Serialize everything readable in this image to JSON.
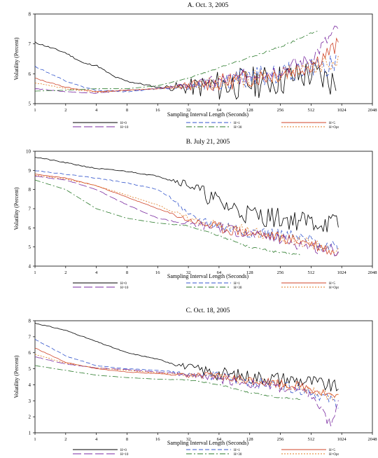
{
  "chart_data": [
    {
      "type": "line",
      "title": "A. Oct. 3, 2005",
      "xlabel": "Sampling Interval Length (Seconds)",
      "ylabel": "Volatility (Percent)",
      "x_scale": "log2",
      "xlim": [
        1,
        2048
      ],
      "ylim": [
        5,
        8
      ],
      "xticks": [
        1,
        2,
        4,
        8,
        16,
        32,
        64,
        128,
        256,
        512,
        1024,
        2048
      ],
      "yticks": [
        5,
        6,
        7,
        8
      ],
      "legend": [
        "H=0",
        "H=1",
        "H=5",
        "H=10",
        "H=30",
        "H=Opt"
      ],
      "series": [
        {
          "name": "H=0",
          "color": "#000000",
          "dash": "solid",
          "trend": [
            [
              1,
              7.05
            ],
            [
              2,
              6.7
            ],
            [
              3,
              6.35
            ],
            [
              4,
              6.28
            ],
            [
              6,
              5.9
            ],
            [
              8,
              5.75
            ],
            [
              16,
              5.55
            ],
            [
              32,
              5.55
            ],
            [
              64,
              5.6
            ],
            [
              128,
              5.7
            ],
            [
              256,
              5.8
            ],
            [
              512,
              6.0
            ],
            [
              900,
              5.7
            ]
          ],
          "noise": 0.55,
          "seed": 11
        },
        {
          "name": "H=1",
          "color": "#3355cc",
          "dash": "dashed",
          "trend": [
            [
              1,
              6.25
            ],
            [
              2,
              5.75
            ],
            [
              3,
              5.55
            ],
            [
              4,
              5.45
            ],
            [
              8,
              5.4
            ],
            [
              16,
              5.5
            ],
            [
              32,
              5.6
            ],
            [
              64,
              5.7
            ],
            [
              128,
              5.9
            ],
            [
              256,
              6.0
            ],
            [
              512,
              6.2
            ],
            [
              900,
              6.3
            ]
          ],
          "noise": 0.35,
          "seed": 12
        },
        {
          "name": "H=5",
          "color": "#d0452a",
          "dash": "solid",
          "trend": [
            [
              1,
              5.85
            ],
            [
              2,
              5.55
            ],
            [
              4,
              5.4
            ],
            [
              8,
              5.45
            ],
            [
              16,
              5.5
            ],
            [
              32,
              5.6
            ],
            [
              64,
              5.7
            ],
            [
              128,
              5.85
            ],
            [
              256,
              6.0
            ],
            [
              512,
              6.3
            ],
            [
              950,
              6.95
            ]
          ],
          "noise": 0.3,
          "seed": 13
        },
        {
          "name": "H=10",
          "color": "#7a2aa0",
          "dash": "longdash",
          "trend": [
            [
              1,
              5.5
            ],
            [
              2,
              5.4
            ],
            [
              4,
              5.35
            ],
            [
              8,
              5.45
            ],
            [
              16,
              5.5
            ],
            [
              32,
              5.6
            ],
            [
              64,
              5.75
            ],
            [
              128,
              5.95
            ],
            [
              256,
              6.15
            ],
            [
              512,
              6.5
            ],
            [
              950,
              7.55
            ]
          ],
          "noise": 0.25,
          "seed": 14
        },
        {
          "name": "H=30",
          "color": "#2a7a2a",
          "dash": "dashdot",
          "trend": [
            [
              1,
              5.42
            ],
            [
              2,
              5.45
            ],
            [
              4,
              5.5
            ],
            [
              8,
              5.5
            ],
            [
              16,
              5.6
            ],
            [
              32,
              5.85
            ],
            [
              64,
              6.2
            ],
            [
              128,
              6.55
            ],
            [
              256,
              6.9
            ],
            [
              512,
              7.35
            ],
            [
              620,
              7.45
            ]
          ],
          "noise": 0.03,
          "seed": 15
        },
        {
          "name": "H=Opt",
          "color": "#e07a20",
          "dash": "dotted",
          "trend": [
            [
              1,
              5.7
            ],
            [
              2,
              5.5
            ],
            [
              4,
              5.38
            ],
            [
              8,
              5.45
            ],
            [
              16,
              5.5
            ],
            [
              32,
              5.6
            ],
            [
              64,
              5.7
            ],
            [
              128,
              5.85
            ],
            [
              256,
              6.0
            ],
            [
              512,
              6.2
            ],
            [
              950,
              6.45
            ]
          ],
          "noise": 0.28,
          "seed": 16
        }
      ]
    },
    {
      "type": "line",
      "title": "B. July 21, 2005",
      "xlabel": "Sampling Interval Length (Seconds)",
      "ylabel": "Volatility (Percent)",
      "x_scale": "log2",
      "xlim": [
        1,
        2048
      ],
      "ylim": [
        4,
        10
      ],
      "xticks": [
        1,
        2,
        4,
        8,
        16,
        32,
        64,
        128,
        256,
        512,
        1024,
        2048
      ],
      "yticks": [
        4,
        5,
        6,
        7,
        8,
        9,
        10
      ],
      "legend": [
        "H=0",
        "H=1",
        "H=5",
        "H=10",
        "H=30",
        "H=Opt"
      ],
      "series": [
        {
          "name": "H=0",
          "color": "#000000",
          "dash": "solid",
          "trend": [
            [
              1,
              9.7
            ],
            [
              2,
              9.4
            ],
            [
              4,
              9.1
            ],
            [
              8,
              8.95
            ],
            [
              16,
              8.7
            ],
            [
              32,
              8.3
            ],
            [
              64,
              7.3
            ],
            [
              128,
              6.7
            ],
            [
              256,
              6.5
            ],
            [
              512,
              6.3
            ],
            [
              950,
              6.2
            ]
          ],
          "noise": 0.55,
          "seed": 21
        },
        {
          "name": "H=1",
          "color": "#3355cc",
          "dash": "dashed",
          "trend": [
            [
              1,
              9.0
            ],
            [
              2,
              8.8
            ],
            [
              4,
              8.6
            ],
            [
              8,
              8.35
            ],
            [
              16,
              8.0
            ],
            [
              24,
              7.4
            ],
            [
              32,
              6.6
            ],
            [
              64,
              6.1
            ],
            [
              128,
              5.8
            ],
            [
              256,
              5.6
            ],
            [
              512,
              5.3
            ],
            [
              950,
              5.0
            ]
          ],
          "noise": 0.35,
          "seed": 22
        },
        {
          "name": "H=5",
          "color": "#d0452a",
          "dash": "solid",
          "trend": [
            [
              1,
              8.8
            ],
            [
              2,
              8.6
            ],
            [
              4,
              8.2
            ],
            [
              8,
              7.6
            ],
            [
              16,
              7.0
            ],
            [
              32,
              6.4
            ],
            [
              64,
              6.0
            ],
            [
              128,
              5.7
            ],
            [
              256,
              5.5
            ],
            [
              512,
              5.2
            ],
            [
              950,
              4.6
            ]
          ],
          "noise": 0.3,
          "seed": 23
        },
        {
          "name": "H=10",
          "color": "#7a2aa0",
          "dash": "longdash",
          "trend": [
            [
              1,
              8.7
            ],
            [
              2,
              8.5
            ],
            [
              4,
              8.0
            ],
            [
              8,
              7.2
            ],
            [
              16,
              6.5
            ],
            [
              32,
              6.2
            ],
            [
              64,
              6.0
            ],
            [
              128,
              5.7
            ],
            [
              256,
              5.4
            ],
            [
              512,
              5.0
            ],
            [
              950,
              4.8
            ]
          ],
          "noise": 0.3,
          "seed": 24
        },
        {
          "name": "H=30",
          "color": "#2a7a2a",
          "dash": "dashdot",
          "trend": [
            [
              1,
              8.5
            ],
            [
              2,
              8.0
            ],
            [
              4,
              7.0
            ],
            [
              8,
              6.5
            ],
            [
              16,
              6.25
            ],
            [
              32,
              6.1
            ],
            [
              64,
              5.6
            ],
            [
              128,
              5.0
            ],
            [
              256,
              4.7
            ],
            [
              400,
              4.6
            ]
          ],
          "noise": 0.05,
          "seed": 25
        },
        {
          "name": "H=Opt",
          "color": "#e07a20",
          "dash": "dotted",
          "trend": [
            [
              1,
              8.75
            ],
            [
              2,
              8.55
            ],
            [
              4,
              8.2
            ],
            [
              8,
              7.7
            ],
            [
              16,
              7.2
            ],
            [
              32,
              6.5
            ],
            [
              64,
              6.1
            ],
            [
              128,
              5.8
            ],
            [
              256,
              5.5
            ],
            [
              512,
              5.2
            ],
            [
              950,
              4.7
            ]
          ],
          "noise": 0.3,
          "seed": 26
        }
      ]
    },
    {
      "type": "line",
      "title": "C. Oct. 18, 2005",
      "xlabel": "Sampling Interval Length (Seconds)",
      "ylabel": "Volatility (Percent)",
      "x_scale": "log2",
      "xlim": [
        1,
        2048
      ],
      "ylim": [
        1,
        8
      ],
      "xticks": [
        1,
        2,
        4,
        8,
        16,
        32,
        64,
        128,
        256,
        512,
        1024,
        2048
      ],
      "yticks": [
        1,
        2,
        3,
        4,
        5,
        6,
        7,
        8
      ],
      "legend": [
        "H=0",
        "H=1",
        "H=5",
        "H=10",
        "H=30",
        "H=Opt"
      ],
      "series": [
        {
          "name": "H=0",
          "color": "#000000",
          "dash": "solid",
          "trend": [
            [
              1,
              7.85
            ],
            [
              2,
              7.4
            ],
            [
              4,
              6.7
            ],
            [
              8,
              6.0
            ],
            [
              16,
              5.6
            ],
            [
              32,
              5.1
            ],
            [
              64,
              4.7
            ],
            [
              128,
              4.5
            ],
            [
              256,
              4.4
            ],
            [
              512,
              4.2
            ],
            [
              950,
              3.8
            ]
          ],
          "noise": 0.45,
          "seed": 31
        },
        {
          "name": "H=1",
          "color": "#3355cc",
          "dash": "dashed",
          "trend": [
            [
              1,
              6.85
            ],
            [
              2,
              5.8
            ],
            [
              4,
              5.2
            ],
            [
              8,
              5.0
            ],
            [
              16,
              4.9
            ],
            [
              32,
              4.7
            ],
            [
              64,
              4.5
            ],
            [
              128,
              4.2
            ],
            [
              256,
              4.0
            ],
            [
              512,
              3.6
            ],
            [
              950,
              2.8
            ]
          ],
          "noise": 0.35,
          "seed": 32
        },
        {
          "name": "H=5",
          "color": "#d0452a",
          "dash": "solid",
          "trend": [
            [
              1,
              6.3
            ],
            [
              2,
              5.4
            ],
            [
              4,
              5.0
            ],
            [
              8,
              4.8
            ],
            [
              16,
              4.7
            ],
            [
              32,
              4.6
            ],
            [
              64,
              4.5
            ],
            [
              128,
              4.3
            ],
            [
              256,
              4.1
            ],
            [
              512,
              3.8
            ],
            [
              950,
              3.2
            ]
          ],
          "noise": 0.3,
          "seed": 33
        },
        {
          "name": "H=10",
          "color": "#7a2aa0",
          "dash": "longdash",
          "trend": [
            [
              1,
              5.75
            ],
            [
              2,
              5.3
            ],
            [
              4,
              5.05
            ],
            [
              8,
              4.95
            ],
            [
              16,
              4.8
            ],
            [
              32,
              4.6
            ],
            [
              64,
              4.4
            ],
            [
              128,
              4.1
            ],
            [
              256,
              3.8
            ],
            [
              512,
              3.4
            ],
            [
              800,
              1.5
            ],
            [
              950,
              3.0
            ]
          ],
          "noise": 0.3,
          "seed": 34
        },
        {
          "name": "H=30",
          "color": "#2a7a2a",
          "dash": "dashdot",
          "trend": [
            [
              1,
              5.2
            ],
            [
              2,
              4.9
            ],
            [
              4,
              4.6
            ],
            [
              8,
              4.45
            ],
            [
              16,
              4.35
            ],
            [
              32,
              4.3
            ],
            [
              64,
              4.0
            ],
            [
              128,
              3.5
            ],
            [
              256,
              3.2
            ],
            [
              400,
              3.1
            ]
          ],
          "noise": 0.05,
          "seed": 35
        },
        {
          "name": "H=Opt",
          "color": "#e07a20",
          "dash": "dotted",
          "trend": [
            [
              1,
              5.9
            ],
            [
              2,
              5.35
            ],
            [
              4,
              5.05
            ],
            [
              8,
              4.9
            ],
            [
              16,
              4.75
            ],
            [
              32,
              4.6
            ],
            [
              64,
              4.45
            ],
            [
              128,
              4.2
            ],
            [
              256,
              4.0
            ],
            [
              512,
              3.7
            ],
            [
              950,
              3.1
            ]
          ],
          "noise": 0.3,
          "seed": 36
        }
      ]
    }
  ]
}
